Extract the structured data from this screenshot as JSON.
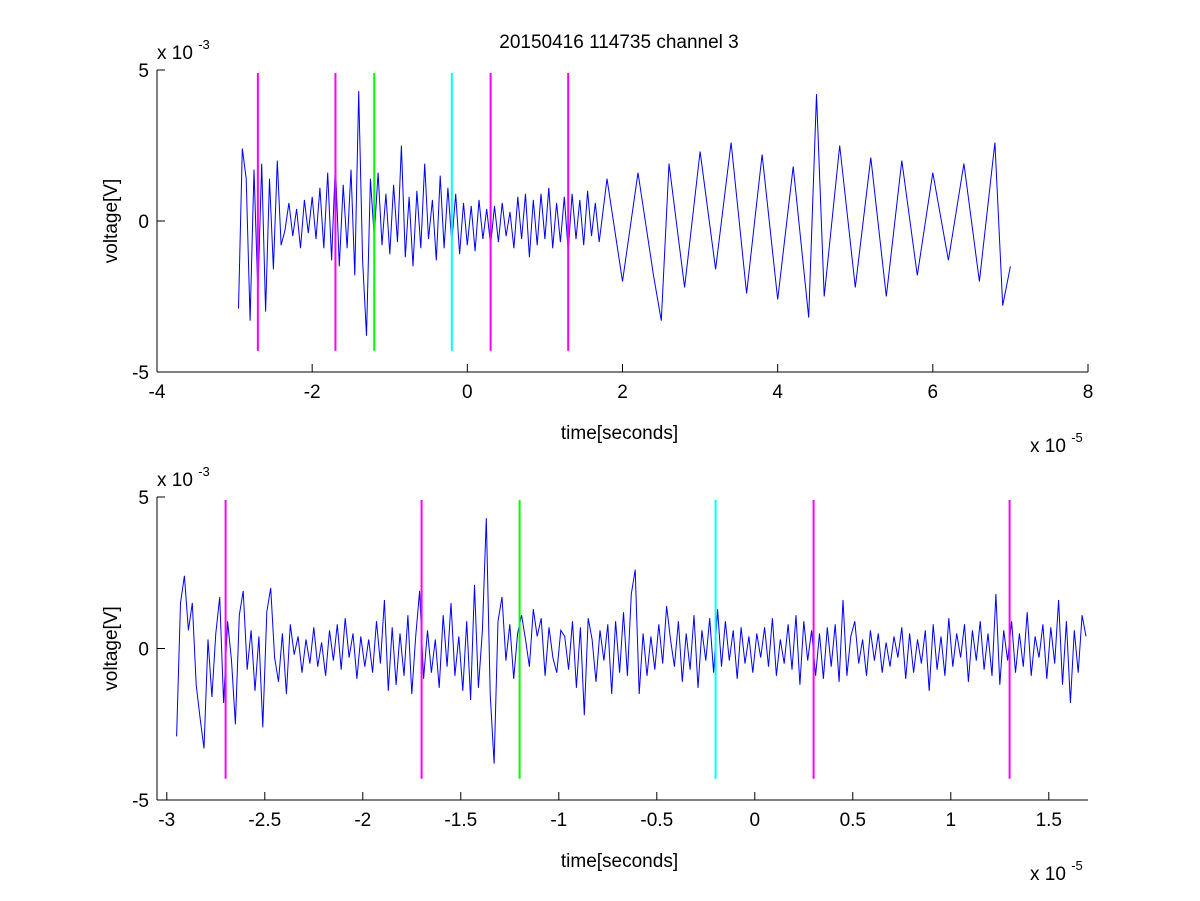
{
  "figure_title": "20150416 114735 channel 3",
  "colors": {
    "signal": "#0000ff",
    "magenta": "#ff00ff",
    "green": "#00ff00",
    "cyan": "#00ffff",
    "axis": "#000000",
    "background": "#ffffff"
  },
  "chart_data": [
    {
      "type": "line",
      "title": "20150416 114735 channel 3",
      "xlabel": "time[seconds]",
      "ylabel": "voltage[V]",
      "x_exponent_label": "x 10",
      "x_exponent": "-5",
      "y_exponent_label": "x 10",
      "y_exponent": "-3",
      "xlim": [
        -4,
        8
      ],
      "ylim": [
        -5,
        5
      ],
      "x_ticks": [
        -4,
        -2,
        0,
        2,
        4,
        6,
        8
      ],
      "x_tick_labels": [
        "-4",
        "-2",
        "0",
        "2",
        "4",
        "6",
        "8"
      ],
      "y_ticks": [
        -5,
        0,
        5
      ],
      "y_tick_labels": [
        "-5",
        "0",
        "5"
      ],
      "grid": false,
      "series": [
        {
          "x": [
            -2.95,
            -2.9,
            -2.85,
            -2.8,
            -2.75,
            -2.7,
            -2.65,
            -2.6,
            -2.55,
            -2.5,
            -2.45,
            -2.4,
            -2.35,
            -2.3,
            -2.25,
            -2.2,
            -2.15,
            -2.1,
            -2.05,
            -2.0,
            -1.95,
            -1.9,
            -1.85,
            -1.8,
            -1.75,
            -1.7,
            -1.65,
            -1.6,
            -1.55,
            -1.5,
            -1.45,
            -1.4,
            -1.35,
            -1.3,
            -1.25,
            -1.2,
            -1.15,
            -1.1,
            -1.05,
            -1.0,
            -0.95,
            -0.9,
            -0.85,
            -0.8,
            -0.75,
            -0.7,
            -0.65,
            -0.6,
            -0.55,
            -0.5,
            -0.45,
            -0.4,
            -0.35,
            -0.3,
            -0.25,
            -0.2,
            -0.15,
            -0.1,
            -0.05,
            0.0,
            0.05,
            0.1,
            0.15,
            0.2,
            0.25,
            0.3,
            0.35,
            0.4,
            0.45,
            0.5,
            0.55,
            0.6,
            0.65,
            0.7,
            0.75,
            0.8,
            0.85,
            0.9,
            0.95,
            1.0,
            1.05,
            1.1,
            1.15,
            1.2,
            1.25,
            1.3,
            1.35,
            1.4,
            1.45,
            1.5,
            1.55,
            1.6,
            1.65,
            1.7,
            1.8,
            2.0,
            2.2,
            2.4,
            2.5,
            2.6,
            2.8,
            3.0,
            3.2,
            3.4,
            3.6,
            3.8,
            4.0,
            4.2,
            4.4,
            4.5,
            4.6,
            4.8,
            5.0,
            5.2,
            5.4,
            5.6,
            5.8,
            6.0,
            6.2,
            6.4,
            6.6,
            6.8,
            6.9,
            7.0
          ],
          "y": [
            -2.9,
            2.4,
            1.4,
            -3.3,
            1.7,
            -2.4,
            1.9,
            -3.0,
            1.4,
            -1.6,
            2.0,
            -0.8,
            -0.3,
            0.6,
            -0.5,
            0.4,
            -0.9,
            0.7,
            -0.4,
            0.8,
            -0.6,
            1.1,
            -0.9,
            1.6,
            -1.3,
            1.9,
            -1.5,
            1.2,
            -0.9,
            1.7,
            -1.8,
            4.3,
            -1.3,
            -3.8,
            1.4,
            -0.5,
            1.6,
            -0.8,
            0.9,
            -1.1,
            1.2,
            -0.7,
            2.5,
            -1.2,
            0.8,
            -1.5,
            1.0,
            -0.9,
            1.9,
            -0.6,
            0.7,
            -1.3,
            1.5,
            -0.9,
            1.1,
            -0.7,
            0.9,
            -1.1,
            0.6,
            -0.8,
            0.5,
            -1.0,
            0.7,
            -0.6,
            0.4,
            -0.8,
            0.5,
            -0.7,
            0.6,
            -0.5,
            0.3,
            -0.9,
            0.8,
            -0.6,
            0.9,
            -1.2,
            0.7,
            -0.8,
            0.9,
            -0.6,
            1.1,
            -0.9,
            0.6,
            -0.7,
            0.8,
            -1.0,
            0.9,
            -0.6,
            0.7,
            -0.8,
            1.0,
            -0.5,
            0.6,
            -0.7,
            1.4,
            -2.0,
            1.6,
            -1.8,
            -3.3,
            1.9,
            -2.2,
            2.3,
            -1.6,
            2.6,
            -2.4,
            2.2,
            -2.6,
            1.8,
            -3.2,
            4.2,
            -2.5,
            2.5,
            -2.2,
            2.1,
            -2.5,
            2.0,
            -1.8,
            1.6,
            -1.3,
            1.9,
            -2.0,
            2.6,
            -2.8,
            -1.5
          ],
          "color": "#0000ff"
        }
      ],
      "vertical_markers": [
        {
          "x": -2.7,
          "color": "magenta"
        },
        {
          "x": -1.7,
          "color": "magenta"
        },
        {
          "x": -1.2,
          "color": "green"
        },
        {
          "x": -0.2,
          "color": "cyan"
        },
        {
          "x": 0.3,
          "color": "magenta"
        },
        {
          "x": 1.3,
          "color": "magenta"
        }
      ],
      "marker_ylim": [
        -4.3,
        4.9
      ]
    },
    {
      "type": "line",
      "title": "",
      "xlabel": "time[seconds]",
      "ylabel": "voltage[V]",
      "x_exponent_label": "x 10",
      "x_exponent": "-5",
      "y_exponent_label": "x 10",
      "y_exponent": "-3",
      "xlim": [
        -3.05,
        1.7
      ],
      "ylim": [
        -5,
        5
      ],
      "x_ticks": [
        -3,
        -2.5,
        -2,
        -1.5,
        -1,
        -0.5,
        0,
        0.5,
        1,
        1.5
      ],
      "x_tick_labels": [
        "-3",
        "-2.5",
        "-2",
        "-1.5",
        "-1",
        "-0.5",
        "0",
        "0.5",
        "1",
        "1.5"
      ],
      "y_ticks": [
        -5,
        0,
        5
      ],
      "y_tick_labels": [
        "-5",
        "0",
        "5"
      ],
      "grid": false,
      "series": [
        {
          "x": [
            -2.95,
            -2.93,
            -2.91,
            -2.89,
            -2.87,
            -2.85,
            -2.83,
            -2.81,
            -2.79,
            -2.77,
            -2.75,
            -2.73,
            -2.71,
            -2.69,
            -2.67,
            -2.65,
            -2.63,
            -2.61,
            -2.59,
            -2.57,
            -2.55,
            -2.53,
            -2.51,
            -2.49,
            -2.47,
            -2.45,
            -2.43,
            -2.41,
            -2.39,
            -2.37,
            -2.35,
            -2.33,
            -2.31,
            -2.29,
            -2.27,
            -2.25,
            -2.23,
            -2.21,
            -2.19,
            -2.17,
            -2.15,
            -2.13,
            -2.11,
            -2.09,
            -2.07,
            -2.05,
            -2.03,
            -2.01,
            -1.99,
            -1.97,
            -1.95,
            -1.93,
            -1.91,
            -1.89,
            -1.87,
            -1.85,
            -1.83,
            -1.81,
            -1.79,
            -1.77,
            -1.75,
            -1.73,
            -1.71,
            -1.69,
            -1.67,
            -1.65,
            -1.63,
            -1.61,
            -1.59,
            -1.57,
            -1.55,
            -1.53,
            -1.51,
            -1.49,
            -1.47,
            -1.45,
            -1.43,
            -1.41,
            -1.39,
            -1.37,
            -1.35,
            -1.33,
            -1.31,
            -1.29,
            -1.27,
            -1.25,
            -1.23,
            -1.21,
            -1.19,
            -1.17,
            -1.15,
            -1.13,
            -1.11,
            -1.09,
            -1.07,
            -1.05,
            -1.03,
            -1.01,
            -0.99,
            -0.97,
            -0.95,
            -0.93,
            -0.91,
            -0.89,
            -0.87,
            -0.85,
            -0.83,
            -0.81,
            -0.79,
            -0.77,
            -0.75,
            -0.73,
            -0.71,
            -0.69,
            -0.67,
            -0.65,
            -0.63,
            -0.61,
            -0.59,
            -0.57,
            -0.55,
            -0.53,
            -0.51,
            -0.49,
            -0.47,
            -0.45,
            -0.43,
            -0.41,
            -0.39,
            -0.37,
            -0.35,
            -0.33,
            -0.31,
            -0.29,
            -0.27,
            -0.25,
            -0.23,
            -0.21,
            -0.19,
            -0.17,
            -0.15,
            -0.13,
            -0.11,
            -0.09,
            -0.07,
            -0.05,
            -0.03,
            -0.01,
            0.01,
            0.03,
            0.05,
            0.07,
            0.09,
            0.11,
            0.13,
            0.15,
            0.17,
            0.19,
            0.21,
            0.23,
            0.25,
            0.27,
            0.29,
            0.31,
            0.33,
            0.35,
            0.37,
            0.39,
            0.41,
            0.43,
            0.45,
            0.47,
            0.49,
            0.51,
            0.53,
            0.55,
            0.57,
            0.59,
            0.61,
            0.63,
            0.65,
            0.67,
            0.69,
            0.71,
            0.73,
            0.75,
            0.77,
            0.79,
            0.81,
            0.83,
            0.85,
            0.87,
            0.89,
            0.91,
            0.93,
            0.95,
            0.97,
            0.99,
            1.01,
            1.03,
            1.05,
            1.07,
            1.09,
            1.11,
            1.13,
            1.15,
            1.17,
            1.19,
            1.21,
            1.23,
            1.25,
            1.27,
            1.29,
            1.31,
            1.33,
            1.35,
            1.37,
            1.39,
            1.41,
            1.43,
            1.45,
            1.47,
            1.49,
            1.51,
            1.53,
            1.55,
            1.57,
            1.59,
            1.61,
            1.63,
            1.65,
            1.67,
            1.69
          ],
          "y": [
            -2.9,
            1.5,
            2.4,
            0.6,
            1.5,
            -1.2,
            -2.3,
            -3.3,
            0.3,
            -1.6,
            0.5,
            1.7,
            -1.8,
            0.9,
            -0.4,
            -2.5,
            1.1,
            1.9,
            -0.7,
            0.6,
            -1.4,
            0.4,
            -2.6,
            1.2,
            2.0,
            -0.3,
            -1.1,
            0.5,
            -1.5,
            0.8,
            -0.2,
            0.4,
            -0.8,
            0.3,
            -0.5,
            0.7,
            -0.6,
            0.2,
            -0.9,
            0.6,
            -0.4,
            0.8,
            -0.7,
            1.0,
            -0.3,
            0.5,
            -1.0,
            0.4,
            -0.6,
            0.3,
            -0.8,
            0.9,
            -0.5,
            1.6,
            -1.4,
            0.7,
            -1.2,
            0.5,
            -0.9,
            1.1,
            -1.5,
            0.4,
            1.9,
            -1.0,
            0.6,
            -0.8,
            0.3,
            -1.3,
            1.1,
            -0.6,
            1.5,
            -0.9,
            0.4,
            -1.4,
            0.9,
            -1.7,
            2.1,
            -1.3,
            0.6,
            4.3,
            -1.5,
            -3.8,
            0.9,
            1.7,
            -0.4,
            0.8,
            -1.0,
            0.5,
            1.1,
            0.3,
            -0.6,
            1.3,
            0.4,
            1.0,
            -0.9,
            0.7,
            -0.3,
            -0.8,
            0.6,
            0.4,
            -0.7,
            0.9,
            -1.3,
            0.7,
            -2.2,
            1.0,
            0.3,
            -1.1,
            0.6,
            -0.4,
            0.8,
            -1.5,
            0.9,
            -0.8,
            1.2,
            -0.9,
            1.8,
            2.6,
            -1.5,
            0.5,
            -0.9,
            0.4,
            -0.7,
            0.8,
            -0.5,
            1.4,
            0.3,
            -0.6,
            0.9,
            -1.1,
            0.5,
            -0.7,
            1.1,
            -1.3,
            0.6,
            -0.4,
            1.0,
            -0.8,
            1.3,
            -0.6,
            0.9,
            -0.4,
            0.6,
            -1.0,
            0.7,
            -0.5,
            0.4,
            -0.8,
            0.5,
            -0.3,
            0.7,
            -0.6,
            1.0,
            -0.9,
            0.3,
            -0.5,
            0.8,
            -0.7,
            1.1,
            -1.2,
            0.9,
            -0.4,
            0.6,
            -0.9,
            0.5,
            -1.0,
            0.7,
            -0.6,
            0.8,
            -1.1,
            1.6,
            -0.9,
            0.4,
            0.9,
            -0.5,
            0.3,
            -0.9,
            0.6,
            -0.4,
            0.5,
            -0.8,
            0.2,
            -0.6,
            0.4,
            -0.3,
            0.7,
            -1.0,
            0.5,
            -0.8,
            0.3,
            -0.5,
            0.6,
            -1.4,
            0.8,
            -0.7,
            0.4,
            -0.9,
            1.0,
            -0.6,
            0.5,
            -0.3,
            0.8,
            -1.1,
            0.6,
            -0.4,
            0.9,
            -0.7,
            0.5,
            -0.9,
            1.8,
            -1.2,
            0.6,
            -0.4,
            0.9,
            -0.8,
            0.5,
            -0.6,
            1.2,
            -0.9,
            0.4,
            -0.3,
            0.8,
            -1.0,
            0.7,
            -0.5,
            1.6,
            -1.2,
            0.9,
            -1.8,
            0.6,
            -0.8,
            1.1,
            0.4
          ],
          "color": "#0000ff"
        }
      ],
      "vertical_markers": [
        {
          "x": -2.7,
          "color": "magenta"
        },
        {
          "x": -1.7,
          "color": "magenta"
        },
        {
          "x": -1.2,
          "color": "green"
        },
        {
          "x": -0.2,
          "color": "cyan"
        },
        {
          "x": 0.3,
          "color": "magenta"
        },
        {
          "x": 1.3,
          "color": "magenta"
        }
      ],
      "marker_ylim": [
        -4.3,
        4.9
      ]
    }
  ]
}
